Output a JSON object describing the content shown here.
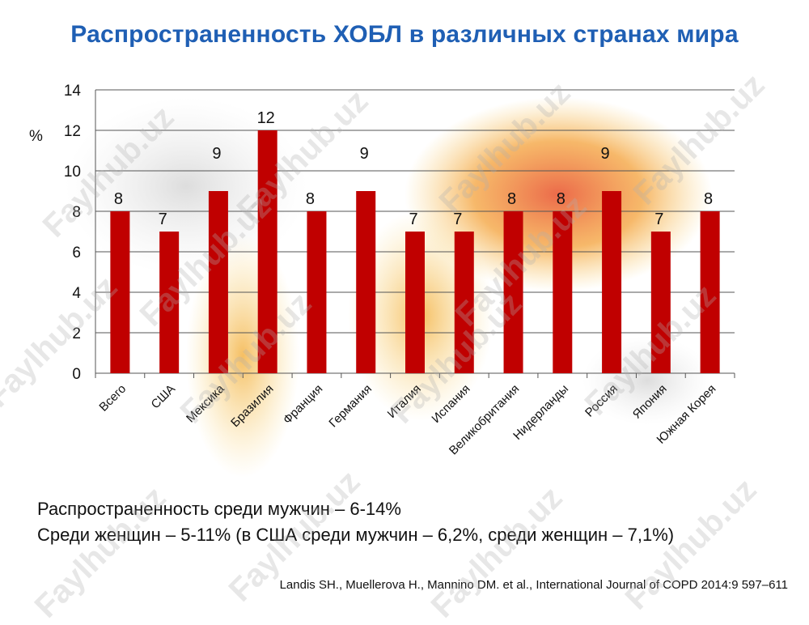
{
  "title": "Распространенность ХОБЛ в различных странах мира",
  "colors": {
    "title": "#1f5fb4",
    "bar": "#c00000",
    "grid": "#555555",
    "axis_text": "#111111"
  },
  "chart_data": {
    "type": "bar",
    "categories": [
      "Всего",
      "США",
      "Мексика",
      "Бразилия",
      "Франция",
      "Германия",
      "Италия",
      "Испания",
      "Великобритания",
      "Нидерланды",
      "Россия",
      "Япония",
      "Южная Корея"
    ],
    "values": [
      8,
      7,
      9,
      12,
      8,
      9,
      7,
      7,
      8,
      8,
      9,
      7,
      8
    ],
    "data_labels": [
      "8",
      "7",
      "9",
      "12",
      "8",
      "9",
      "7",
      "7",
      "8",
      "8",
      "9",
      "7",
      "8"
    ],
    "ylabel": "%",
    "ylim": [
      0,
      14
    ],
    "yticks": [
      0,
      2,
      4,
      6,
      8,
      10,
      12,
      14
    ],
    "grid": true
  },
  "notes": {
    "men": "Распространенность среди мужчин – 6-14%",
    "women": "Среди женщин – 5-11% (в США среди мужчин – 6,2%, среди женщин – 7,1%)"
  },
  "citation": "Landis SH., Muellerova H., Mannino DM. et al., International Journal of COPD 2014:9 597–611",
  "watermark_text": "Faylhub.uz"
}
